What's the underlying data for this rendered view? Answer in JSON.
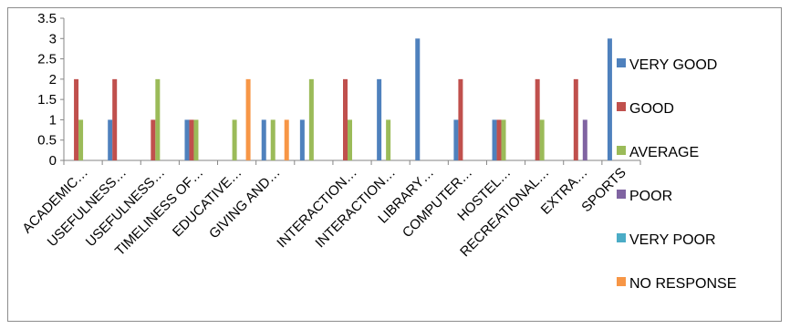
{
  "chart_data": {
    "type": "bar",
    "categories": [
      "ACADEMIC…",
      "USEFULNESS…",
      "USEFULNESS…",
      "TIMELINESS OF…",
      "EDUCATIVE…",
      "GIVING AND…",
      "",
      "INTERACTION…",
      "INTERACTION…",
      "LIBRARY…",
      "COMPUTER…",
      "HOSTEL…",
      "RECREATIONAL…",
      "EXTRA…",
      "SPORTS"
    ],
    "series": [
      {
        "name": "VERY GOOD",
        "color": "#4F81BD",
        "values": [
          0,
          1,
          0,
          1,
          0,
          1,
          1,
          0,
          2,
          3,
          1,
          1,
          0,
          0,
          3
        ]
      },
      {
        "name": "GOOD",
        "color": "#C0504D",
        "values": [
          2,
          2,
          1,
          1,
          0,
          0,
          0,
          2,
          0,
          0,
          2,
          1,
          2,
          2,
          0
        ]
      },
      {
        "name": "AVERAGE",
        "color": "#9BBB59",
        "values": [
          1,
          0,
          2,
          1,
          1,
          1,
          2,
          1,
          1,
          0,
          0,
          1,
          1,
          0,
          0
        ]
      },
      {
        "name": "POOR",
        "color": "#8064A2",
        "values": [
          0,
          0,
          0,
          0,
          0,
          0,
          0,
          0,
          0,
          0,
          0,
          0,
          0,
          1,
          0
        ]
      },
      {
        "name": "VERY POOR",
        "color": "#4BACC6",
        "values": [
          0,
          0,
          0,
          0,
          0,
          0,
          0,
          0,
          0,
          0,
          0,
          0,
          0,
          0,
          0
        ]
      },
      {
        "name": "NO RESPONSE",
        "color": "#F79646",
        "values": [
          0,
          0,
          0,
          0,
          2,
          1,
          0,
          0,
          0,
          0,
          0,
          0,
          0,
          0,
          0
        ]
      }
    ],
    "yticks": [
      "0",
      "0.5",
      "1",
      "1.5",
      "2",
      "2.5",
      "3",
      "3.5"
    ],
    "ylim": [
      0,
      3.5
    ],
    "legend_position": "right",
    "grid": false
  }
}
